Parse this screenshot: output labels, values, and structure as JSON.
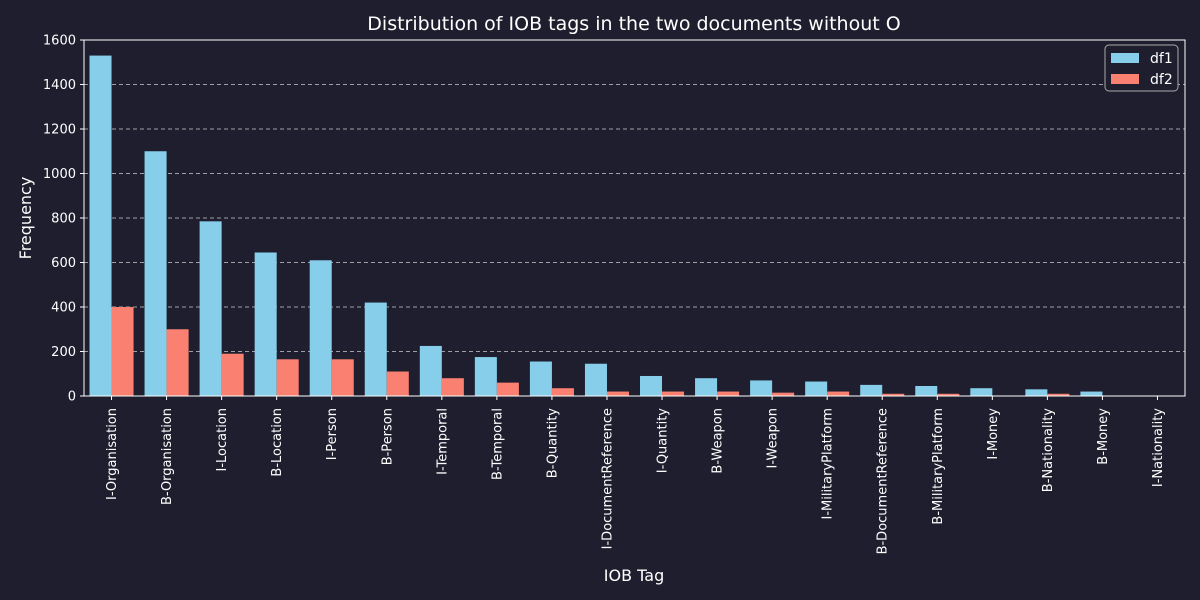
{
  "chart_data": {
    "type": "bar",
    "title": "Distribution of IOB tags in the two documents without O",
    "xlabel": "IOB Tag",
    "ylabel": "Frequency",
    "ylim": [
      0,
      1600
    ],
    "yticks": [
      0,
      200,
      400,
      600,
      800,
      1000,
      1200,
      1400,
      1600
    ],
    "grid": "horizontal dashed",
    "legend": "top-right",
    "categories": [
      "I-Organisation",
      "B-Organisation",
      "I-Location",
      "B-Location",
      "I-Person",
      "B-Person",
      "I-Temporal",
      "B-Temporal",
      "B-Quantity",
      "I-DocumentReference",
      "I-Quantity",
      "B-Weapon",
      "I-Weapon",
      "I-MilitaryPlatform",
      "B-DocumentReference",
      "B-MilitaryPlatform",
      "I-Money",
      "B-Nationality",
      "B-Money",
      "I-Nationality"
    ],
    "series": [
      {
        "name": "df1",
        "color": "#87ceeb",
        "values": [
          1530,
          1100,
          785,
          645,
          610,
          420,
          225,
          175,
          155,
          145,
          90,
          80,
          70,
          65,
          50,
          45,
          35,
          30,
          20,
          0
        ]
      },
      {
        "name": "df2",
        "color": "#fa8072",
        "values": [
          400,
          300,
          190,
          165,
          165,
          110,
          80,
          60,
          35,
          20,
          20,
          20,
          15,
          20,
          10,
          10,
          0,
          10,
          0,
          0
        ]
      }
    ]
  },
  "colors": {
    "background": "#1e1e2e",
    "text": "#ffffff",
    "grid": "#cccccc"
  }
}
